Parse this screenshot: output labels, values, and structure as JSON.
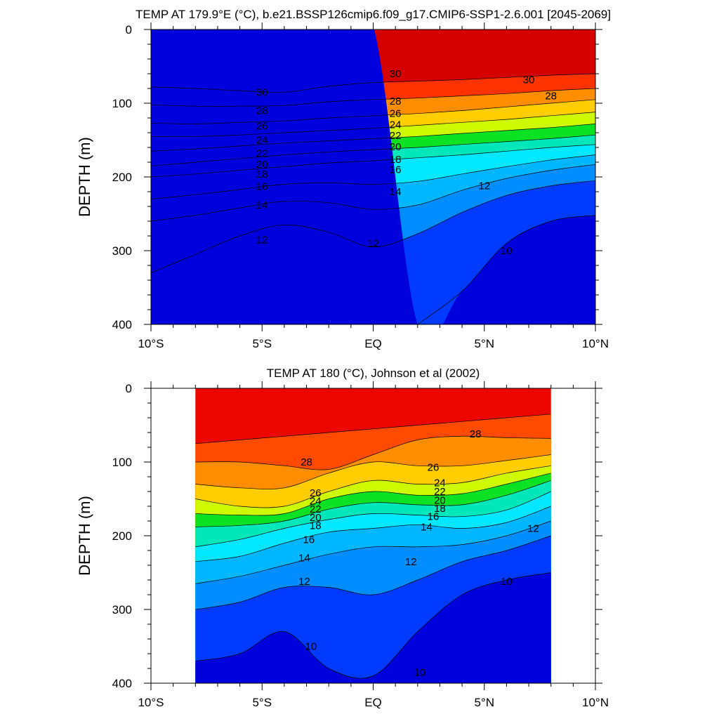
{
  "chart_data": [
    {
      "type": "contour",
      "title": "TEMP AT 179.9°E (°C), b.e21.BSSP126cmip6.f09_g17.CMIP6-SSP1-2.6.001 [2045-2069]",
      "ylabel": "DEPTH (m)",
      "xlabel": "",
      "x_ticklabels": [
        "10°S",
        "5°S",
        "EQ",
        "5°N",
        "10°N"
      ],
      "x_tickvalues": [
        -10,
        -5,
        0,
        5,
        10
      ],
      "y_ticklabels": [
        "0",
        "100",
        "200",
        "300",
        "400"
      ],
      "y_tickvalues": [
        0,
        100,
        200,
        300,
        400
      ],
      "xlim": [
        -10,
        10
      ],
      "ylim": [
        400,
        0
      ],
      "y_reversed": true,
      "data_xlim": [
        -10,
        10
      ],
      "contour_levels": [
        9,
        10,
        11,
        12,
        13,
        14,
        15,
        16,
        17,
        18,
        19,
        20,
        21,
        22,
        23,
        24,
        25,
        26,
        27,
        28,
        29,
        30,
        31
      ],
      "x": [
        -10,
        -8,
        -6,
        -4,
        -2,
        0,
        2,
        4,
        6,
        8,
        10
      ],
      "isotherm_depths": {
        "31": [
          null,
          null,
          null,
          null,
          null,
          null,
          null,
          null,
          null,
          null,
          null
        ],
        "30": [
          78,
          80,
          83,
          85,
          77,
          72,
          70,
          68,
          65,
          62,
          60
        ],
        "28": [
          102,
          104,
          104,
          103,
          98,
          95,
          93,
          90,
          87,
          83,
          80
        ],
        "26": [
          127,
          128,
          126,
          124,
          120,
          117,
          114,
          110,
          105,
          100,
          95
        ],
        "24": [
          145,
          145,
          143,
          140,
          137,
          134,
          130,
          126,
          122,
          117,
          112
        ],
        "22": [
          165,
          162,
          158,
          154,
          151,
          148,
          145,
          141,
          137,
          133,
          128
        ],
        "20": [
          185,
          180,
          175,
          170,
          166,
          163,
          160,
          156,
          152,
          148,
          143
        ],
        "18": [
          200,
          196,
          191,
          186,
          181,
          178,
          174,
          170,
          165,
          160,
          156
        ],
        "16": [
          230,
          224,
          217,
          210,
          208,
          210,
          206,
          196,
          186,
          177,
          170
        ],
        "14": [
          260,
          252,
          242,
          233,
          235,
          244,
          238,
          218,
          202,
          191,
          183
        ],
        "12": [
          330,
          305,
          280,
          265,
          275,
          295,
          277,
          248,
          225,
          212,
          205
        ],
        "10": [
          null,
          null,
          null,
          null,
          null,
          null,
          400,
          355,
          290,
          260,
          252
        ]
      },
      "labels": [
        {
          "level": 30,
          "x": -5,
          "y": 85
        },
        {
          "level": 30,
          "x": 1,
          "y": 60
        },
        {
          "level": 30,
          "x": 7,
          "y": 68
        },
        {
          "level": 28,
          "x": -5,
          "y": 110
        },
        {
          "level": 28,
          "x": 1,
          "y": 97
        },
        {
          "level": 28,
          "x": 8,
          "y": 90
        },
        {
          "level": 26,
          "x": -5,
          "y": 131
        },
        {
          "level": 26,
          "x": 1,
          "y": 114
        },
        {
          "level": 24,
          "x": -5,
          "y": 150
        },
        {
          "level": 24,
          "x": 1,
          "y": 129
        },
        {
          "level": 22,
          "x": -5,
          "y": 168
        },
        {
          "level": 22,
          "x": 1,
          "y": 144
        },
        {
          "level": 20,
          "x": -5,
          "y": 183
        },
        {
          "level": 20,
          "x": 1,
          "y": 159
        },
        {
          "level": 18,
          "x": -5,
          "y": 196
        },
        {
          "level": 18,
          "x": 1,
          "y": 176
        },
        {
          "level": 16,
          "x": -5,
          "y": 213
        },
        {
          "level": 16,
          "x": 1,
          "y": 190
        },
        {
          "level": 14,
          "x": -5,
          "y": 238
        },
        {
          "level": 14,
          "x": 1,
          "y": 220
        },
        {
          "level": 12,
          "x": -5,
          "y": 285
        },
        {
          "level": 12,
          "x": 0,
          "y": 290
        },
        {
          "level": 12,
          "x": 5,
          "y": 212
        },
        {
          "level": 10,
          "x": 6,
          "y": 300
        }
      ]
    },
    {
      "type": "contour",
      "title": "TEMP AT 180 (°C), Johnson et al (2002)",
      "ylabel": "DEPTH (m)",
      "xlabel": "",
      "x_ticklabels": [
        "10°S",
        "5°S",
        "EQ",
        "5°N",
        "10°N"
      ],
      "x_tickvalues": [
        -10,
        -5,
        0,
        5,
        10
      ],
      "y_ticklabels": [
        "0",
        "100",
        "200",
        "300",
        "400"
      ],
      "y_tickvalues": [
        0,
        100,
        200,
        300,
        400
      ],
      "xlim": [
        -10,
        10
      ],
      "ylim": [
        400,
        0
      ],
      "y_reversed": true,
      "data_xlim": [
        -8,
        8
      ],
      "contour_levels": [
        9,
        10,
        11,
        12,
        13,
        14,
        15,
        16,
        17,
        18,
        19,
        20,
        21,
        22,
        23,
        24,
        25,
        26,
        27,
        28,
        29,
        30
      ],
      "x": [
        -8,
        -6,
        -4,
        -2,
        0,
        2,
        4,
        6,
        8
      ],
      "isotherm_depths": {
        "29": [
          75,
          70,
          65,
          60,
          55,
          50,
          45,
          40,
          35
        ],
        "28": [
          100,
          100,
          105,
          110,
          90,
          70,
          65,
          67,
          68
        ],
        "26": [
          130,
          135,
          135,
          115,
          100,
          105,
          105,
          98,
          90
        ],
        "24": [
          150,
          160,
          160,
          140,
          125,
          130,
          128,
          115,
          105
        ],
        "22": [
          170,
          172,
          170,
          150,
          140,
          145,
          143,
          130,
          115
        ],
        "20": [
          188,
          186,
          180,
          164,
          155,
          158,
          158,
          145,
          125
        ],
        "18": [
          215,
          205,
          190,
          178,
          170,
          172,
          174,
          165,
          140
        ],
        "16": [
          235,
          228,
          210,
          195,
          190,
          185,
          190,
          182,
          160
        ],
        "14": [
          265,
          255,
          240,
          225,
          215,
          215,
          212,
          200,
          180
        ],
        "12": [
          300,
          290,
          270,
          270,
          280,
          260,
          235,
          220,
          200
        ],
        "10": [
          370,
          360,
          330,
          380,
          390,
          330,
          280,
          260,
          250
        ]
      },
      "labels": [
        {
          "level": 28,
          "x": -3,
          "y": 100
        },
        {
          "level": 28,
          "x": 4.6,
          "y": 62
        },
        {
          "level": 26,
          "x": -2.6,
          "y": 142
        },
        {
          "level": 26,
          "x": 2.7,
          "y": 107
        },
        {
          "level": 24,
          "x": -2.6,
          "y": 153
        },
        {
          "level": 24,
          "x": 3,
          "y": 128
        },
        {
          "level": 22,
          "x": -2.6,
          "y": 164
        },
        {
          "level": 22,
          "x": 3,
          "y": 140
        },
        {
          "level": 20,
          "x": -2.6,
          "y": 175
        },
        {
          "level": 20,
          "x": 3,
          "y": 152
        },
        {
          "level": 18,
          "x": -2.6,
          "y": 186
        },
        {
          "level": 18,
          "x": 3,
          "y": 163
        },
        {
          "level": 16,
          "x": -2.9,
          "y": 205
        },
        {
          "level": 16,
          "x": 2.7,
          "y": 174
        },
        {
          "level": 14,
          "x": -3.1,
          "y": 230
        },
        {
          "level": 14,
          "x": 2.4,
          "y": 188
        },
        {
          "level": 12,
          "x": -3.1,
          "y": 262
        },
        {
          "level": 12,
          "x": 1.7,
          "y": 235
        },
        {
          "level": 12,
          "x": 7.2,
          "y": 190
        },
        {
          "level": 10,
          "x": -2.8,
          "y": 350
        },
        {
          "level": 10,
          "x": 2.1,
          "y": 385
        },
        {
          "level": 10,
          "x": 6,
          "y": 262
        }
      ]
    }
  ]
}
